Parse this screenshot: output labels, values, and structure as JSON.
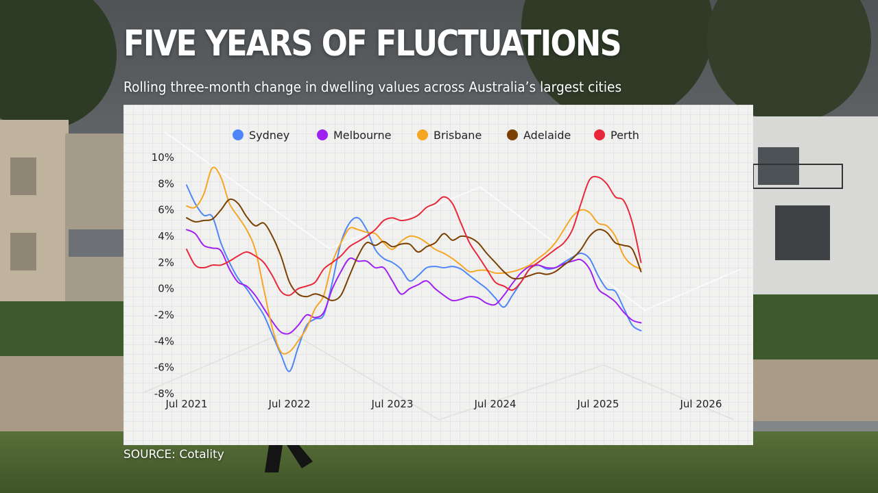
{
  "header": {
    "title": "FIVE YEARS OF FLUCTUATIONS",
    "subtitle": "Rolling three-month change in dwelling values across Australia’s largest cities"
  },
  "footer": {
    "source": "SOURCE: Cotality"
  },
  "colors": {
    "Sydney": "#4f86f7",
    "Melbourne": "#a020f0",
    "Brisbane": "#f5a623",
    "Adelaide": "#7b3f00",
    "Perth": "#e8283a"
  },
  "chart_data": {
    "type": "line",
    "legend_placement": "top",
    "grid": true,
    "title": "FIVE YEARS OF FLUCTUATIONS",
    "subtitle": "Rolling three-month change in dwelling values across Australia’s largest cities",
    "xlabel": "",
    "ylabel": "",
    "xlim": [
      "Jul 2021",
      "Jul 2026"
    ],
    "ylim": [
      -8,
      10
    ],
    "x_ticks": [
      "Jul 2021",
      "Jul 2022",
      "Jul 2023",
      "Jul 2024",
      "Jul 2025",
      "Jul 2026"
    ],
    "y_ticks": [
      "10%",
      "8%",
      "6%",
      "4%",
      "2%",
      "0%",
      "-2%",
      "-4%",
      "-6%",
      "-8%"
    ],
    "x": [
      "2021-07",
      "2021-08",
      "2021-09",
      "2021-10",
      "2021-11",
      "2021-12",
      "2022-01",
      "2022-02",
      "2022-03",
      "2022-04",
      "2022-05",
      "2022-06",
      "2022-07",
      "2022-08",
      "2022-09",
      "2022-10",
      "2022-11",
      "2022-12",
      "2023-01",
      "2023-02",
      "2023-03",
      "2023-04",
      "2023-05",
      "2023-06",
      "2023-07",
      "2023-08",
      "2023-09",
      "2023-10",
      "2023-11",
      "2023-12",
      "2024-01",
      "2024-02",
      "2024-03",
      "2024-04",
      "2024-05",
      "2024-06",
      "2024-07",
      "2024-08",
      "2024-09",
      "2024-10",
      "2024-11",
      "2024-12",
      "2025-01",
      "2025-02",
      "2025-03",
      "2025-04",
      "2025-05",
      "2025-06",
      "2025-07",
      "2025-08",
      "2025-09",
      "2025-10",
      "2025-11",
      "2025-12",
      "2026-01",
      "2026-02",
      "2026-03",
      "2026-04",
      "2026-05",
      "2026-06",
      "2026-07"
    ],
    "series": [
      {
        "name": "Sydney",
        "values": [
          7.9,
          6.5,
          5.6,
          5.5,
          3.5,
          2.0,
          0.8,
          0.0,
          -1.0,
          -2.0,
          -3.5,
          -5.0,
          -6.3,
          -4.5,
          -2.8,
          -2.3,
          -2.0,
          0.5,
          3.5,
          5.0,
          5.4,
          4.5,
          3.0,
          2.3,
          2.0,
          1.5,
          0.6,
          1.0,
          1.6,
          1.7,
          1.6,
          1.7,
          1.5,
          1.0,
          0.5,
          0.0,
          -0.7,
          -1.4,
          -0.5,
          0.5,
          1.5,
          1.8,
          1.5,
          1.6,
          2.0,
          2.4,
          2.7,
          2.3,
          1.0,
          0.0,
          -0.2,
          -1.5,
          -2.8,
          -3.2,
          null,
          null,
          null,
          null,
          null,
          null,
          null
        ]
      },
      {
        "name": "Melbourne",
        "values": [
          4.5,
          4.2,
          3.3,
          3.1,
          2.9,
          1.5,
          0.5,
          0.2,
          -0.5,
          -1.5,
          -2.5,
          -3.3,
          -3.4,
          -2.8,
          -2.0,
          -2.2,
          -1.8,
          0.0,
          1.3,
          2.3,
          2.1,
          2.1,
          1.6,
          1.6,
          0.6,
          -0.4,
          0.0,
          0.3,
          0.6,
          0.0,
          -0.5,
          -0.9,
          -0.8,
          -0.6,
          -0.7,
          -1.1,
          -1.2,
          -0.5,
          0.4,
          1.2,
          1.7,
          1.8,
          1.6,
          1.6,
          1.9,
          2.1,
          2.2,
          1.5,
          0.0,
          -0.5,
          -1.0,
          -1.8,
          -2.4,
          -2.6,
          null,
          null,
          null,
          null,
          null,
          null,
          null
        ]
      },
      {
        "name": "Brisbane",
        "values": [
          6.3,
          6.2,
          7.2,
          9.2,
          8.5,
          6.5,
          5.5,
          4.5,
          3.0,
          0.0,
          -3.0,
          -4.8,
          -4.8,
          -4.0,
          -3.0,
          -1.5,
          -0.5,
          2.0,
          3.5,
          4.6,
          4.5,
          4.3,
          4.2,
          3.5,
          3.0,
          3.6,
          4.0,
          3.9,
          3.5,
          3.0,
          2.7,
          2.3,
          1.8,
          1.3,
          1.4,
          1.4,
          1.2,
          1.2,
          1.3,
          1.5,
          1.8,
          2.3,
          2.8,
          3.5,
          4.5,
          5.5,
          6.0,
          5.8,
          5.0,
          4.8,
          4.0,
          2.5,
          1.8,
          1.5,
          null,
          null,
          null,
          null,
          null,
          null,
          null
        ]
      },
      {
        "name": "Adelaide",
        "values": [
          5.4,
          5.1,
          5.2,
          5.3,
          6.0,
          6.8,
          6.5,
          5.5,
          4.8,
          5.0,
          4.0,
          2.5,
          0.5,
          -0.4,
          -0.6,
          -0.4,
          -0.6,
          -0.9,
          -0.5,
          1.0,
          2.5,
          3.5,
          3.3,
          3.6,
          3.2,
          3.4,
          3.4,
          2.8,
          3.2,
          3.5,
          4.2,
          3.7,
          4.0,
          3.9,
          3.5,
          2.7,
          2.0,
          1.3,
          0.8,
          0.8,
          1.0,
          1.2,
          1.1,
          1.3,
          1.8,
          2.3,
          3.0,
          4.0,
          4.5,
          4.3,
          3.5,
          3.3,
          3.0,
          1.3,
          null,
          null,
          null,
          null,
          null,
          null,
          null
        ]
      },
      {
        "name": "Perth",
        "values": [
          3.0,
          1.8,
          1.6,
          1.8,
          1.8,
          2.1,
          2.5,
          2.8,
          2.5,
          2.0,
          1.0,
          -0.2,
          -0.5,
          0.0,
          0.2,
          0.5,
          1.5,
          2.0,
          2.5,
          3.2,
          3.6,
          4.0,
          4.5,
          5.2,
          5.4,
          5.2,
          5.3,
          5.6,
          6.2,
          6.5,
          7.0,
          6.5,
          5.0,
          3.5,
          2.5,
          1.5,
          0.5,
          0.2,
          -0.1,
          0.5,
          1.5,
          2.0,
          2.5,
          3.0,
          3.5,
          4.5,
          6.5,
          8.3,
          8.5,
          8.0,
          7.0,
          6.7,
          5.0,
          2.0,
          null,
          null,
          null,
          null,
          null,
          null,
          null
        ]
      }
    ]
  }
}
